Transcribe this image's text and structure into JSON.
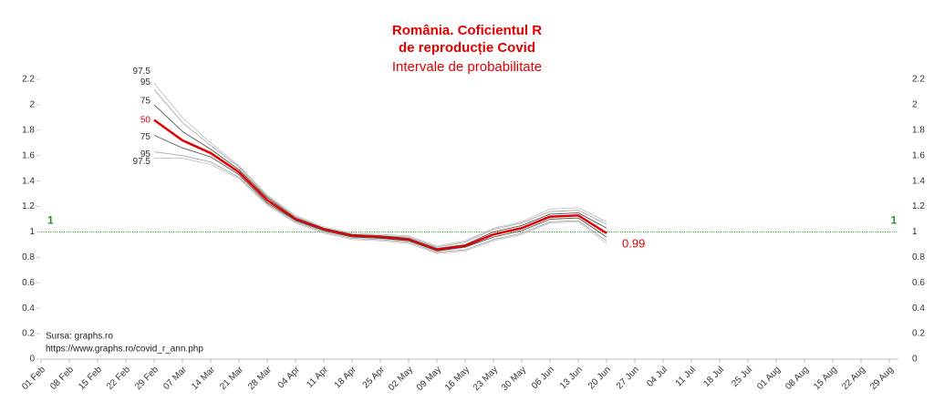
{
  "chart_data": {
    "type": "line",
    "title": "România. Coficientul R",
    "title_line2": "de reproducție Covid",
    "subtitle": "Intervale de probabilitate",
    "source": "Sursa: graphs.ro",
    "source_url": "https://www.graphs.ro/covid_r_ann.php",
    "categories": [
      "01 Feb",
      "08 Feb",
      "15 Feb",
      "22 Feb",
      "29 Feb",
      "07 Mar",
      "14 Mar",
      "21 Mar",
      "28 Mar",
      "04 Apr",
      "11 Apr",
      "18 Apr",
      "25 Apr",
      "02 May",
      "09 May",
      "16 May",
      "23 May",
      "30 May",
      "06 Jun",
      "13 Jun",
      "20 Jun",
      "27 Jun",
      "04 Jul",
      "11 Jul",
      "18 Jul",
      "25 Jul",
      "01 Aug",
      "08 Aug",
      "15 Aug",
      "22 Aug",
      "29 Aug"
    ],
    "series": [
      {
        "name": "97.5",
        "color": "#c4c4c4",
        "values": [
          null,
          null,
          null,
          null,
          2.17,
          1.9,
          1.7,
          1.52,
          1.29,
          1.13,
          1.04,
          0.99,
          0.98,
          0.97,
          0.89,
          0.93,
          1.03,
          1.08,
          1.18,
          1.19,
          1.08,
          null,
          null,
          null,
          null,
          null,
          null,
          null,
          null,
          null,
          null
        ]
      },
      {
        "name": "95",
        "color": "#a8a8a8",
        "values": [
          null,
          null,
          null,
          null,
          2.12,
          1.86,
          1.68,
          1.51,
          1.28,
          1.12,
          1.03,
          0.98,
          0.97,
          0.96,
          0.88,
          0.92,
          1.02,
          1.07,
          1.16,
          1.17,
          1.06,
          null,
          null,
          null,
          null,
          null,
          null,
          null,
          null,
          null,
          null
        ]
      },
      {
        "name": "75",
        "color": "#555555",
        "values": [
          null,
          null,
          null,
          null,
          2.0,
          1.79,
          1.65,
          1.49,
          1.27,
          1.11,
          1.03,
          0.98,
          0.97,
          0.95,
          0.87,
          0.9,
          1.0,
          1.05,
          1.14,
          1.15,
          1.03,
          null,
          null,
          null,
          null,
          null,
          null,
          null,
          null,
          null,
          null
        ]
      },
      {
        "name": "50",
        "color": "#e00000",
        "values": [
          null,
          null,
          null,
          null,
          1.88,
          1.72,
          1.62,
          1.47,
          1.25,
          1.1,
          1.02,
          0.97,
          0.96,
          0.94,
          0.86,
          0.89,
          0.98,
          1.03,
          1.12,
          1.13,
          0.99,
          null,
          null,
          null,
          null,
          null,
          null,
          null,
          null,
          null,
          null
        ]
      },
      {
        "name": "75",
        "color": "#555555",
        "values": [
          null,
          null,
          null,
          null,
          1.76,
          1.66,
          1.59,
          1.45,
          1.23,
          1.09,
          1.01,
          0.96,
          0.95,
          0.93,
          0.85,
          0.88,
          0.96,
          1.01,
          1.1,
          1.11,
          0.96,
          null,
          null,
          null,
          null,
          null,
          null,
          null,
          null,
          null,
          null
        ]
      },
      {
        "name": "95",
        "color": "#a8a8a8",
        "values": [
          null,
          null,
          null,
          null,
          1.63,
          1.6,
          1.55,
          1.43,
          1.22,
          1.08,
          1.0,
          0.95,
          0.94,
          0.92,
          0.84,
          0.86,
          0.94,
          0.99,
          1.08,
          1.09,
          0.93,
          null,
          null,
          null,
          null,
          null,
          null,
          null,
          null,
          null,
          null
        ]
      },
      {
        "name": "97.5",
        "color": "#c4c4c4",
        "values": [
          null,
          null,
          null,
          null,
          1.58,
          1.58,
          1.53,
          1.42,
          1.21,
          1.07,
          0.99,
          0.94,
          0.93,
          0.91,
          0.83,
          0.85,
          0.93,
          0.98,
          1.07,
          1.08,
          0.91,
          null,
          null,
          null,
          null,
          null,
          null,
          null,
          null,
          null,
          null
        ]
      }
    ],
    "reference_line": 1,
    "reference_color": "#2e8b2e",
    "ylim": [
      0,
      2.2
    ],
    "yticks": [
      0,
      0.2,
      0.4,
      0.6,
      0.8,
      1,
      1.2,
      1.4,
      1.6,
      1.8,
      2,
      2.2
    ],
    "y2lim": [
      0,
      2.2
    ],
    "y2ticks": [
      0,
      0.2,
      0.4,
      0.6,
      0.8,
      1,
      1.2,
      1.4,
      1.6,
      1.8,
      2,
      2.2
    ]
  }
}
